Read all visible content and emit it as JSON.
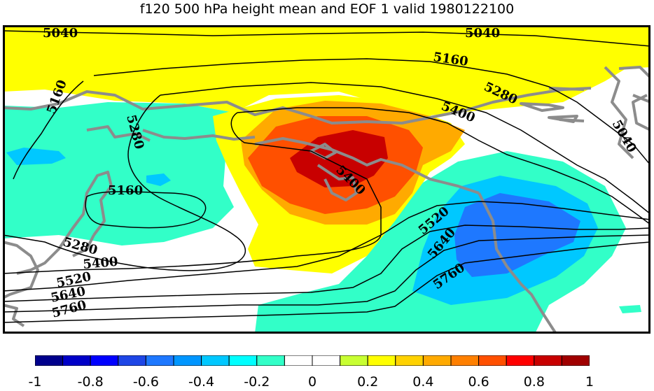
{
  "title": "f120 500 hPa height mean and EOF 1 valid 1980122100",
  "map": {
    "contour_labels": [
      "5040",
      "5040",
      "5040",
      "5160",
      "5160",
      "5160",
      "5280",
      "5280",
      "5280",
      "5400",
      "5400",
      "5400",
      "5520",
      "5520",
      "5640",
      "5640",
      "5760",
      "5760"
    ],
    "coastline_color": "#8c8c8c"
  },
  "colorbar": {
    "colors": [
      "#00008c",
      "#0000c8",
      "#0000ff",
      "#1e46e6",
      "#1e78ff",
      "#0096ff",
      "#00c8ff",
      "#00ffff",
      "#32ffc8",
      "#ffffff",
      "#ffffff",
      "#c8ff32",
      "#ffff00",
      "#ffd200",
      "#ffaa00",
      "#ff8000",
      "#ff5000",
      "#ff0000",
      "#c80000",
      "#a00000"
    ],
    "tick_labels": [
      "-1",
      "-0.8",
      "-0.6",
      "-0.4",
      "-0.2",
      "0",
      "0.2",
      "0.4",
      "0.6",
      "0.8",
      "1"
    ]
  }
}
